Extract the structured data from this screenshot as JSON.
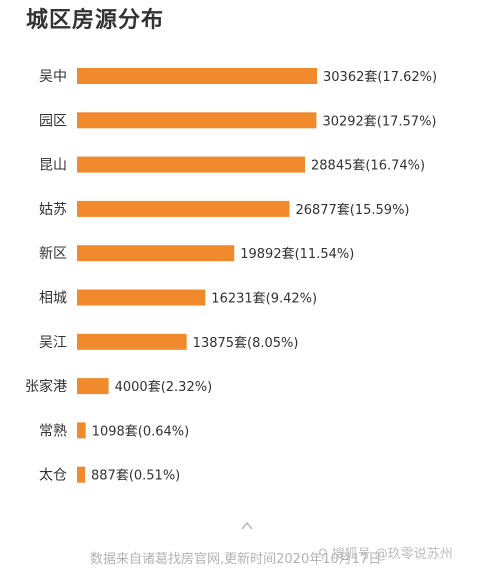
{
  "chart_data": {
    "type": "bar",
    "orientation": "horizontal",
    "title": "城区房源分布",
    "categories": [
      "吴中",
      "园区",
      "昆山",
      "姑苏",
      "新区",
      "相城",
      "吴江",
      "张家港",
      "常熟",
      "太仓"
    ],
    "values": [
      30362,
      30292,
      28845,
      26877,
      19892,
      16231,
      13875,
      4000,
      1098,
      887
    ],
    "data_labels": [
      "30362套(17.62%)",
      "30292套(17.57%)",
      "28845套(16.74%)",
      "26877套(15.59%)",
      "19892套(11.54%)",
      "16231套(9.42%)",
      "13875套(8.05%)",
      "4000套(2.32%)",
      "1098套(0.64%)",
      "887套(0.51%)"
    ],
    "bar_color": "#f08a2c",
    "xlabel": "",
    "ylabel": "",
    "grid": false
  },
  "footer": {
    "source_text": "数据来自诸葛找房官网,更新时间2020年10月17日",
    "watermark_text": "⚲ 搜狐号 @玖零说苏州"
  },
  "icons": {
    "scroll": "chevron-up-icon"
  }
}
